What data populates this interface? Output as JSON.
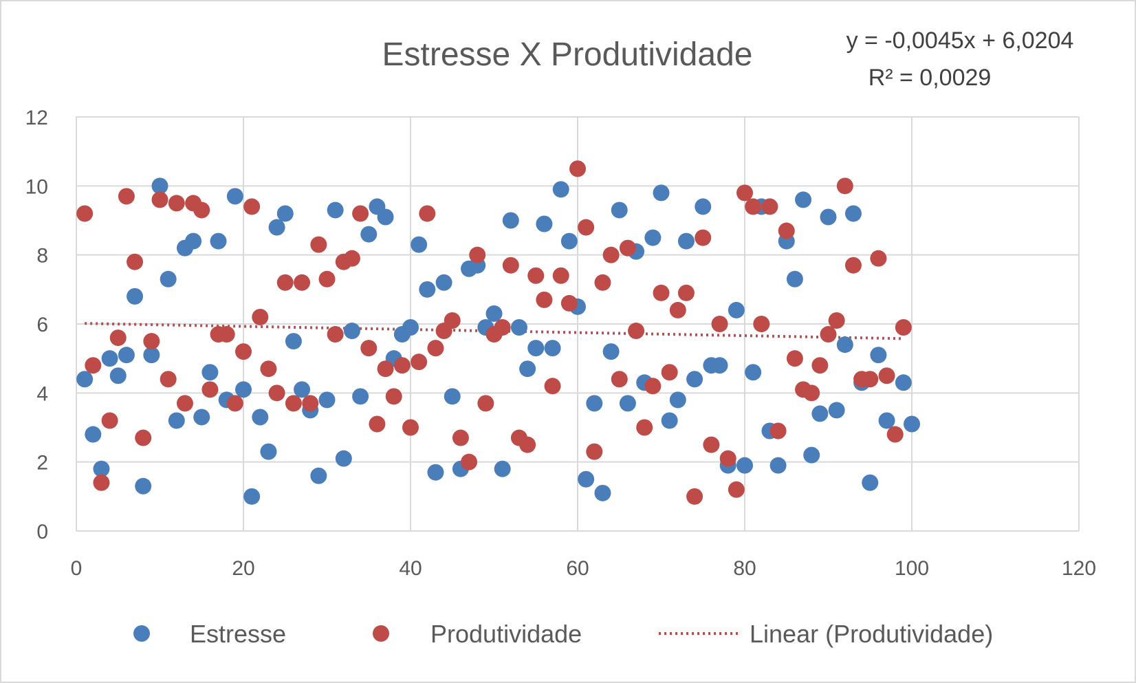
{
  "chart_data": {
    "type": "scatter",
    "title": "Estresse X Produtividade",
    "xlabel": "",
    "ylabel": "",
    "xlim": [
      0,
      120
    ],
    "ylim": [
      0,
      12
    ],
    "x_ticks": [
      "0",
      "20",
      "40",
      "60",
      "80",
      "100",
      "120"
    ],
    "y_ticks": [
      "0",
      "2",
      "4",
      "6",
      "8",
      "10",
      "12"
    ],
    "grid": true,
    "legend_position": "bottom",
    "colors": {
      "estresse": "#4a7ebb",
      "produtividade": "#be4b48",
      "grid": "#d9d9d9"
    },
    "trendline": {
      "name": "Linear (Produtividade)",
      "slope": -0.0045,
      "intercept": 6.0204,
      "x_range": [
        1,
        99
      ],
      "equation_label": "y = -0,0045x + 6,0204",
      "r2_label": "R² = 0,0029"
    },
    "series": [
      {
        "name": "Estresse",
        "points": [
          [
            1,
            4.4
          ],
          [
            2,
            2.8
          ],
          [
            3,
            1.8
          ],
          [
            4,
            5.0
          ],
          [
            5,
            4.5
          ],
          [
            6,
            5.1
          ],
          [
            7,
            6.8
          ],
          [
            8,
            1.3
          ],
          [
            9,
            5.1
          ],
          [
            10,
            10.0
          ],
          [
            11,
            7.3
          ],
          [
            12,
            3.2
          ],
          [
            13,
            8.2
          ],
          [
            14,
            8.4
          ],
          [
            15,
            3.3
          ],
          [
            16,
            4.6
          ],
          [
            17,
            8.4
          ],
          [
            18,
            3.8
          ],
          [
            19,
            9.7
          ],
          [
            20,
            4.1
          ],
          [
            21,
            1.0
          ],
          [
            22,
            3.3
          ],
          [
            23,
            2.3
          ],
          [
            24,
            8.8
          ],
          [
            25,
            9.2
          ],
          [
            26,
            5.5
          ],
          [
            27,
            4.1
          ],
          [
            28,
            3.5
          ],
          [
            29,
            1.6
          ],
          [
            30,
            3.8
          ],
          [
            31,
            9.3
          ],
          [
            32,
            2.1
          ],
          [
            33,
            5.8
          ],
          [
            34,
            3.9
          ],
          [
            35,
            8.6
          ],
          [
            36,
            9.4
          ],
          [
            37,
            9.1
          ],
          [
            38,
            5.0
          ],
          [
            39,
            5.7
          ],
          [
            40,
            5.9
          ],
          [
            41,
            8.3
          ],
          [
            42,
            7.0
          ],
          [
            43,
            1.7
          ],
          [
            44,
            7.2
          ],
          [
            45,
            3.9
          ],
          [
            46,
            1.8
          ],
          [
            47,
            7.6
          ],
          [
            48,
            7.7
          ],
          [
            49,
            5.9
          ],
          [
            50,
            6.3
          ],
          [
            51,
            1.8
          ],
          [
            52,
            9.0
          ],
          [
            53,
            5.9
          ],
          [
            54,
            4.7
          ],
          [
            55,
            5.3
          ],
          [
            56,
            8.9
          ],
          [
            57,
            5.3
          ],
          [
            58,
            9.9
          ],
          [
            59,
            8.4
          ],
          [
            60,
            6.5
          ],
          [
            61,
            1.5
          ],
          [
            62,
            3.7
          ],
          [
            63,
            1.1
          ],
          [
            64,
            5.2
          ],
          [
            65,
            9.3
          ],
          [
            66,
            3.7
          ],
          [
            67,
            8.1
          ],
          [
            68,
            4.3
          ],
          [
            69,
            8.5
          ],
          [
            70,
            9.8
          ],
          [
            71,
            3.2
          ],
          [
            72,
            3.8
          ],
          [
            73,
            8.4
          ],
          [
            74,
            4.4
          ],
          [
            75,
            9.4
          ],
          [
            76,
            4.8
          ],
          [
            77,
            4.8
          ],
          [
            78,
            1.9
          ],
          [
            79,
            6.4
          ],
          [
            80,
            1.9
          ],
          [
            81,
            4.6
          ],
          [
            82,
            9.4
          ],
          [
            83,
            2.9
          ],
          [
            84,
            1.9
          ],
          [
            85,
            8.4
          ],
          [
            86,
            7.3
          ],
          [
            87,
            9.6
          ],
          [
            88,
            2.2
          ],
          [
            89,
            3.4
          ],
          [
            90,
            9.1
          ],
          [
            91,
            3.5
          ],
          [
            92,
            5.4
          ],
          [
            93,
            9.2
          ],
          [
            94,
            4.3
          ],
          [
            95,
            1.4
          ],
          [
            96,
            5.1
          ],
          [
            97,
            3.2
          ],
          [
            99,
            4.3
          ],
          [
            100,
            3.1
          ]
        ]
      },
      {
        "name": "Produtividade",
        "points": [
          [
            1,
            9.2
          ],
          [
            2,
            4.8
          ],
          [
            3,
            1.4
          ],
          [
            4,
            3.2
          ],
          [
            5,
            5.6
          ],
          [
            6,
            9.7
          ],
          [
            7,
            7.8
          ],
          [
            8,
            2.7
          ],
          [
            9,
            5.5
          ],
          [
            10,
            9.6
          ],
          [
            11,
            4.4
          ],
          [
            12,
            9.5
          ],
          [
            13,
            3.7
          ],
          [
            14,
            9.5
          ],
          [
            15,
            9.3
          ],
          [
            16,
            4.1
          ],
          [
            17,
            5.7
          ],
          [
            18,
            5.7
          ],
          [
            19,
            3.7
          ],
          [
            20,
            5.2
          ],
          [
            21,
            9.4
          ],
          [
            22,
            6.2
          ],
          [
            23,
            4.7
          ],
          [
            24,
            4.0
          ],
          [
            25,
            7.2
          ],
          [
            26,
            3.7
          ],
          [
            27,
            7.2
          ],
          [
            28,
            3.7
          ],
          [
            29,
            8.3
          ],
          [
            30,
            7.3
          ],
          [
            31,
            5.7
          ],
          [
            32,
            7.8
          ],
          [
            33,
            7.9
          ],
          [
            34,
            9.2
          ],
          [
            35,
            5.3
          ],
          [
            36,
            3.1
          ],
          [
            37,
            4.7
          ],
          [
            38,
            3.9
          ],
          [
            39,
            4.8
          ],
          [
            40,
            3.0
          ],
          [
            41,
            4.9
          ],
          [
            42,
            9.2
          ],
          [
            43,
            5.3
          ],
          [
            44,
            5.8
          ],
          [
            45,
            6.1
          ],
          [
            46,
            2.7
          ],
          [
            47,
            2.0
          ],
          [
            48,
            8.0
          ],
          [
            49,
            3.7
          ],
          [
            50,
            5.7
          ],
          [
            51,
            5.9
          ],
          [
            52,
            7.7
          ],
          [
            53,
            2.7
          ],
          [
            54,
            2.5
          ],
          [
            55,
            7.4
          ],
          [
            56,
            6.7
          ],
          [
            57,
            4.2
          ],
          [
            58,
            7.4
          ],
          [
            59,
            6.6
          ],
          [
            60,
            10.5
          ],
          [
            61,
            8.8
          ],
          [
            62,
            2.3
          ],
          [
            63,
            7.2
          ],
          [
            64,
            8.0
          ],
          [
            65,
            4.4
          ],
          [
            66,
            8.2
          ],
          [
            67,
            5.8
          ],
          [
            68,
            3.0
          ],
          [
            69,
            4.2
          ],
          [
            70,
            6.9
          ],
          [
            71,
            4.6
          ],
          [
            72,
            6.4
          ],
          [
            73,
            6.9
          ],
          [
            74,
            1.0
          ],
          [
            75,
            8.5
          ],
          [
            76,
            2.5
          ],
          [
            77,
            6.0
          ],
          [
            78,
            2.1
          ],
          [
            79,
            1.2
          ],
          [
            80,
            9.8
          ],
          [
            81,
            9.4
          ],
          [
            82,
            6.0
          ],
          [
            83,
            9.4
          ],
          [
            84,
            2.9
          ],
          [
            85,
            8.7
          ],
          [
            86,
            5.0
          ],
          [
            87,
            4.1
          ],
          [
            88,
            4.0
          ],
          [
            89,
            4.8
          ],
          [
            90,
            5.7
          ],
          [
            91,
            6.1
          ],
          [
            92,
            10.0
          ],
          [
            93,
            7.7
          ],
          [
            94,
            4.4
          ],
          [
            95,
            4.4
          ],
          [
            96,
            7.9
          ],
          [
            97,
            4.5
          ],
          [
            98,
            2.8
          ],
          [
            99,
            5.9
          ]
        ]
      }
    ]
  },
  "legend": {
    "items": [
      "Estresse",
      "Produtividade",
      "Linear (Produtividade)"
    ]
  }
}
